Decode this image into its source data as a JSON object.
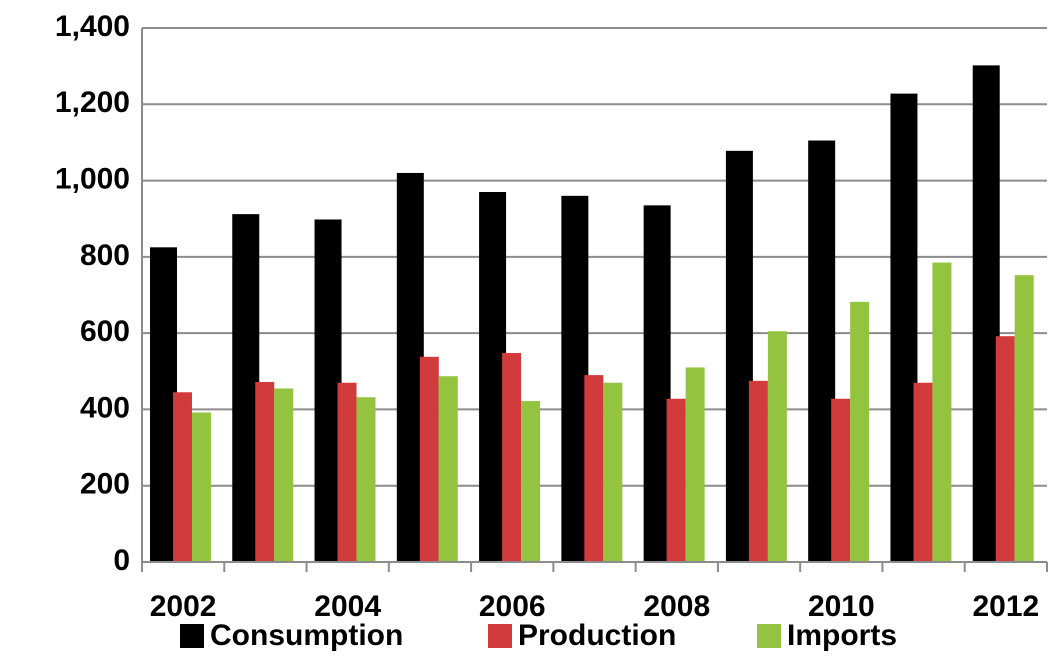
{
  "chart_data": {
    "type": "bar",
    "categories": [
      "2002",
      null,
      "2004",
      null,
      "2006",
      null,
      "2008",
      null,
      "2010",
      null,
      "2012"
    ],
    "series": [
      {
        "name": "Consumption",
        "color": "#000000",
        "values": [
          825,
          912,
          898,
          1020,
          970,
          960,
          935,
          1078,
          1105,
          1228,
          1302
        ]
      },
      {
        "name": "Production",
        "color": "#d23b3b",
        "values": [
          445,
          472,
          470,
          538,
          548,
          490,
          428,
          475,
          428,
          470,
          592
        ]
      },
      {
        "name": "Imports",
        "color": "#94c43f",
        "values": [
          392,
          455,
          432,
          487,
          422,
          470,
          510,
          605,
          682,
          785,
          752
        ]
      }
    ],
    "ylim": [
      0,
      1400
    ],
    "yticks": [
      0,
      200,
      400,
      600,
      800,
      {
        "value": 1000,
        "label": "1,000"
      },
      {
        "value": 1200,
        "label": "1,200"
      },
      {
        "value": 1400,
        "label": "1,400"
      }
    ],
    "grid": true,
    "legend": "bottom"
  }
}
